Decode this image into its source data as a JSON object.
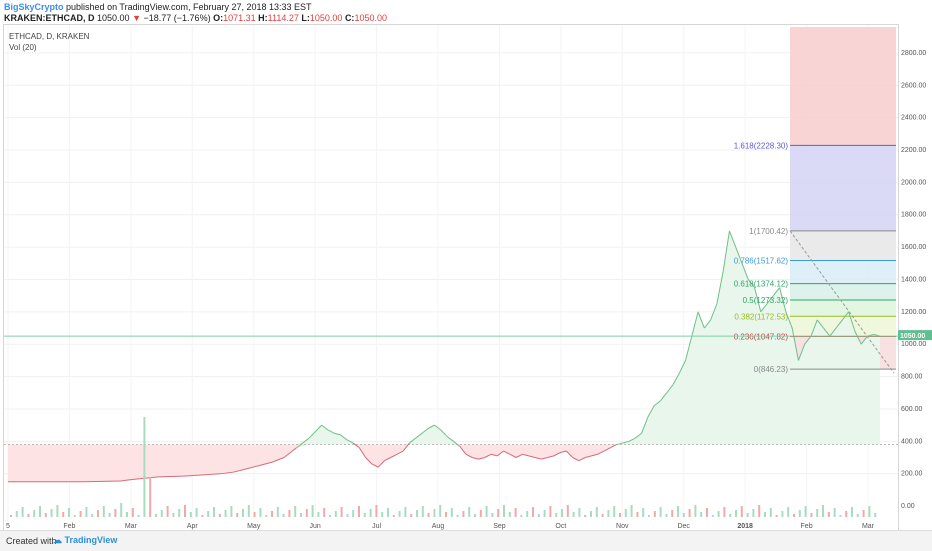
{
  "header": {
    "author": "BigSkyCrypto",
    "published": "published on TradingView.com, February 27, 2018 13:33 EST",
    "symbol": "KRAKEN:ETHCAD, D",
    "last": "1050.00",
    "change_arrow": "▼",
    "change": "−18.77 (−1.76%)",
    "o_label": "O:",
    "o_value": "1071.31",
    "h_label": "H:",
    "h_value": "1114.27",
    "l_label": "L:",
    "l_value": "1050.00",
    "c_label": "C:",
    "c_value": "1050.00"
  },
  "chart_title": "ETHCAD, D, KRAKEN",
  "volume_label": "Vol (20)",
  "price_badge": "1050.00",
  "volume_axis_label": "0.00",
  "footer": {
    "created": "Created with",
    "brand": "TradingView"
  },
  "colors": {
    "up_fill": "#e8f6ec",
    "down_fill": "#fde3e3",
    "line": "#6fbf8a",
    "down_line": "#d66a7a",
    "badge": "#5fbf8f"
  },
  "chart_data": {
    "type": "area",
    "x_labels": [
      "5",
      "Feb",
      "Mar",
      "Apr",
      "May",
      "Jun",
      "Jul",
      "Aug",
      "Sep",
      "Oct",
      "Nov",
      "Dec",
      "2018",
      "Feb",
      "Mar"
    ],
    "y_ticks": [
      200,
      400,
      600,
      800,
      1000,
      1200,
      1400,
      1600,
      1800,
      2000,
      2200,
      2400,
      2600,
      2800
    ],
    "ylim": [
      -80,
      2960
    ],
    "baseline": 380,
    "points": [
      [
        0,
        150
      ],
      [
        30,
        150
      ],
      [
        60,
        150
      ],
      [
        90,
        155
      ],
      [
        100,
        165
      ],
      [
        120,
        180
      ],
      [
        140,
        185
      ],
      [
        160,
        195
      ],
      [
        170,
        200
      ],
      [
        180,
        210
      ],
      [
        190,
        230
      ],
      [
        200,
        250
      ],
      [
        210,
        270
      ],
      [
        220,
        300
      ],
      [
        230,
        360
      ],
      [
        240,
        420
      ],
      [
        250,
        500
      ],
      [
        255,
        470
      ],
      [
        260,
        450
      ],
      [
        265,
        440
      ],
      [
        270,
        410
      ],
      [
        275,
        390
      ],
      [
        280,
        360
      ],
      [
        285,
        300
      ],
      [
        290,
        260
      ],
      [
        295,
        240
      ],
      [
        300,
        280
      ],
      [
        305,
        300
      ],
      [
        310,
        320
      ],
      [
        315,
        340
      ],
      [
        320,
        390
      ],
      [
        325,
        420
      ],
      [
        330,
        450
      ],
      [
        335,
        480
      ],
      [
        340,
        500
      ],
      [
        345,
        470
      ],
      [
        350,
        430
      ],
      [
        355,
        400
      ],
      [
        360,
        370
      ],
      [
        365,
        320
      ],
      [
        370,
        300
      ],
      [
        375,
        290
      ],
      [
        380,
        300
      ],
      [
        385,
        320
      ],
      [
        390,
        310
      ],
      [
        395,
        340
      ],
      [
        400,
        320
      ],
      [
        405,
        300
      ],
      [
        410,
        320
      ],
      [
        415,
        310
      ],
      [
        420,
        300
      ],
      [
        425,
        290
      ],
      [
        430,
        300
      ],
      [
        435,
        310
      ],
      [
        440,
        330
      ],
      [
        445,
        340
      ],
      [
        450,
        300
      ],
      [
        455,
        280
      ],
      [
        460,
        300
      ],
      [
        465,
        310
      ],
      [
        470,
        320
      ],
      [
        475,
        340
      ],
      [
        480,
        360
      ],
      [
        485,
        380
      ],
      [
        490,
        390
      ],
      [
        495,
        400
      ],
      [
        500,
        420
      ],
      [
        505,
        450
      ],
      [
        510,
        550
      ],
      [
        515,
        620
      ],
      [
        520,
        650
      ],
      [
        525,
        700
      ],
      [
        530,
        750
      ],
      [
        535,
        820
      ],
      [
        540,
        900
      ],
      [
        545,
        1050
      ],
      [
        550,
        1200
      ],
      [
        555,
        1100
      ],
      [
        560,
        1150
      ],
      [
        565,
        1250
      ],
      [
        570,
        1450
      ],
      [
        575,
        1700
      ],
      [
        580,
        1600
      ],
      [
        585,
        1500
      ],
      [
        590,
        1400
      ],
      [
        595,
        1350
      ],
      [
        600,
        1200
      ],
      [
        605,
        1250
      ],
      [
        610,
        1300
      ],
      [
        615,
        1350
      ],
      [
        620,
        1200
      ],
      [
        625,
        1100
      ],
      [
        630,
        900
      ],
      [
        635,
        1000
      ],
      [
        640,
        1050
      ],
      [
        645,
        1150
      ],
      [
        650,
        1100
      ],
      [
        655,
        1050
      ],
      [
        660,
        1100
      ],
      [
        665,
        1150
      ],
      [
        670,
        1200
      ],
      [
        675,
        1080
      ],
      [
        680,
        1000
      ],
      [
        685,
        1050
      ],
      [
        690,
        1060
      ],
      [
        695,
        1050
      ]
    ],
    "fib_levels": [
      {
        "label": "1.618(2228.30)",
        "ratio": 1.618,
        "value": 2228.3,
        "color": "#5b5bd6"
      },
      {
        "label": "1(1700.42)",
        "ratio": 1,
        "value": 1700.42,
        "color": "#888888"
      },
      {
        "label": "0.786(1517.62)",
        "ratio": 0.786,
        "value": 1517.62,
        "color": "#3a9ad9"
      },
      {
        "label": "0.618(1374.12)",
        "ratio": 0.618,
        "value": 1374.12,
        "color": "#2ea66a"
      },
      {
        "label": "0.5(1273.32)",
        "ratio": 0.5,
        "value": 1273.32,
        "color": "#2ea66a"
      },
      {
        "label": "0.382(1172.53)",
        "ratio": 0.382,
        "value": 1172.53,
        "color": "#9bbb2a"
      },
      {
        "label": "0.236(1047.82)",
        "ratio": 0.236,
        "value": 1047.82,
        "color": "#cc4444"
      },
      {
        "label": "0(846.23)",
        "ratio": 0,
        "value": 846.23,
        "color": "#888888"
      }
    ]
  }
}
